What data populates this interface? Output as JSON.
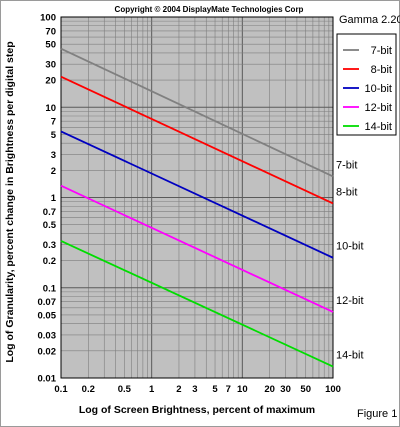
{
  "copyright": "Copyright © 2004 DisplayMate Technologies Corp",
  "gamma_label": "Gamma 2.20",
  "figure_label": "Figure 1",
  "chart_data": {
    "type": "line",
    "xscale": "log",
    "yscale": "log",
    "xlabel": "Log of Screen Brightness, percent of maximum",
    "ylabel": "Log of Granularity, percent change in Brightness per digital step",
    "xlim": [
      0.1,
      100
    ],
    "ylim": [
      0.01,
      100
    ],
    "x_tick_labels": [
      "0.1",
      "0.2",
      "0.5",
      "1",
      "2",
      "3",
      "5",
      "7",
      "10",
      "20",
      "30",
      "50",
      "100"
    ],
    "y_tick_labels": [
      "0.01",
      "0.02",
      "0.03",
      "0.05",
      "0.07",
      "0.1",
      "0.2",
      "0.3",
      "0.5",
      "0.7",
      "1",
      "2",
      "3",
      "5",
      "7",
      "10",
      "20",
      "30",
      "50",
      "70",
      "100"
    ],
    "grid": true,
    "background_color": "#c0c0c0",
    "legend_position": "top-right",
    "series": [
      {
        "name": "7-bit",
        "color": "#808080",
        "x": [
          0.1,
          100
        ],
        "y": [
          44.6,
          1.71
        ],
        "end_label": "7-bit"
      },
      {
        "name": "8-bit",
        "color": "#ff0000",
        "x": [
          0.1,
          100
        ],
        "y": [
          21.8,
          0.86
        ],
        "end_label": "8-bit"
      },
      {
        "name": "10-bit",
        "color": "#0000c0",
        "x": [
          0.1,
          100
        ],
        "y": [
          5.4,
          0.215
        ],
        "end_label": "10-bit"
      },
      {
        "name": "12-bit",
        "color": "#ff00ff",
        "x": [
          0.1,
          100
        ],
        "y": [
          1.35,
          0.054
        ],
        "end_label": "12-bit"
      },
      {
        "name": "14-bit",
        "color": "#00dd00",
        "x": [
          0.1,
          100
        ],
        "y": [
          0.33,
          0.0134
        ],
        "end_label": "14-bit"
      }
    ]
  }
}
